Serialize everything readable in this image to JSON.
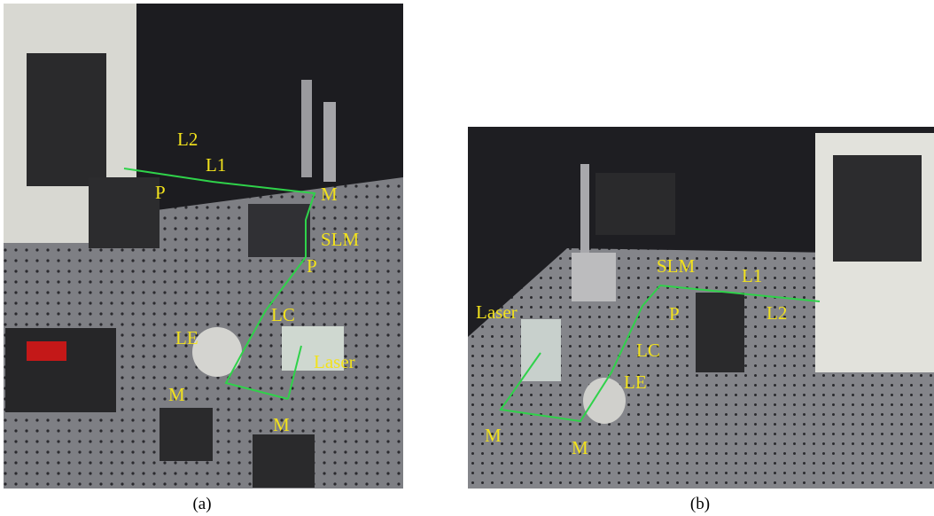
{
  "panels": [
    {
      "caption": "(a)",
      "labels": [
        "L2",
        "L1",
        "P",
        "M",
        "SLM",
        "P",
        "LC",
        "LE",
        "Laser",
        "M",
        "M"
      ]
    },
    {
      "caption": "(b)",
      "labels": [
        "SLM",
        "L1",
        "Laser",
        "P",
        "L2",
        "LC",
        "LE",
        "M",
        "M"
      ]
    }
  ]
}
